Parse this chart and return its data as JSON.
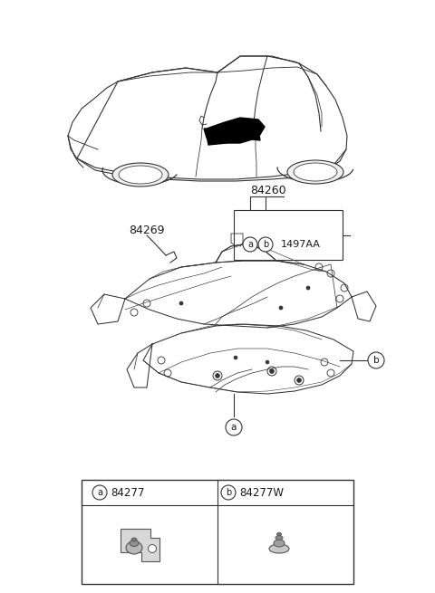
{
  "background_color": "#ffffff",
  "text_color": "#1a1a1a",
  "line_color": "#333333",
  "part_numbers": {
    "main_carpet": "84260",
    "suffix": "1497AA",
    "side_carpet": "84269",
    "clip_a": "84277",
    "clip_b": "84277W"
  },
  "figsize": [
    4.8,
    6.55
  ],
  "dpi": 100
}
